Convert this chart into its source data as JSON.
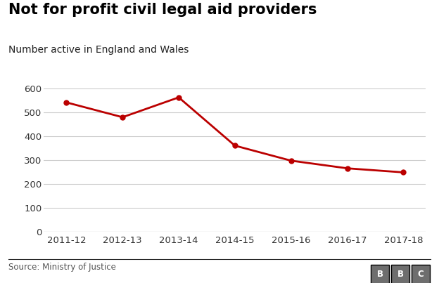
{
  "title": "Not for profit civil legal aid providers",
  "subtitle": "Number active in England and Wales",
  "source": "Source: Ministry of Justice",
  "x_labels": [
    "2011-12",
    "2012-13",
    "2013-14",
    "2014-15",
    "2015-16",
    "2016-17",
    "2017-18"
  ],
  "y_values": [
    543,
    481,
    564,
    362,
    299,
    267,
    250
  ],
  "line_color": "#bb0000",
  "marker_color": "#bb0000",
  "background_color": "#ffffff",
  "grid_color": "#cccccc",
  "ylim": [
    0,
    640
  ],
  "yticks": [
    0,
    100,
    200,
    300,
    400,
    500,
    600
  ],
  "title_fontsize": 15,
  "subtitle_fontsize": 10,
  "tick_fontsize": 9.5,
  "source_fontsize": 8.5,
  "line_width": 2.0,
  "marker_size": 5,
  "bbc_text": "BBC",
  "bbc_box_color": "#6e6e6e",
  "title_color": "#000000",
  "subtitle_color": "#222222",
  "tick_color": "#333333",
  "source_color": "#555555",
  "bottom_line_color": "#222222"
}
